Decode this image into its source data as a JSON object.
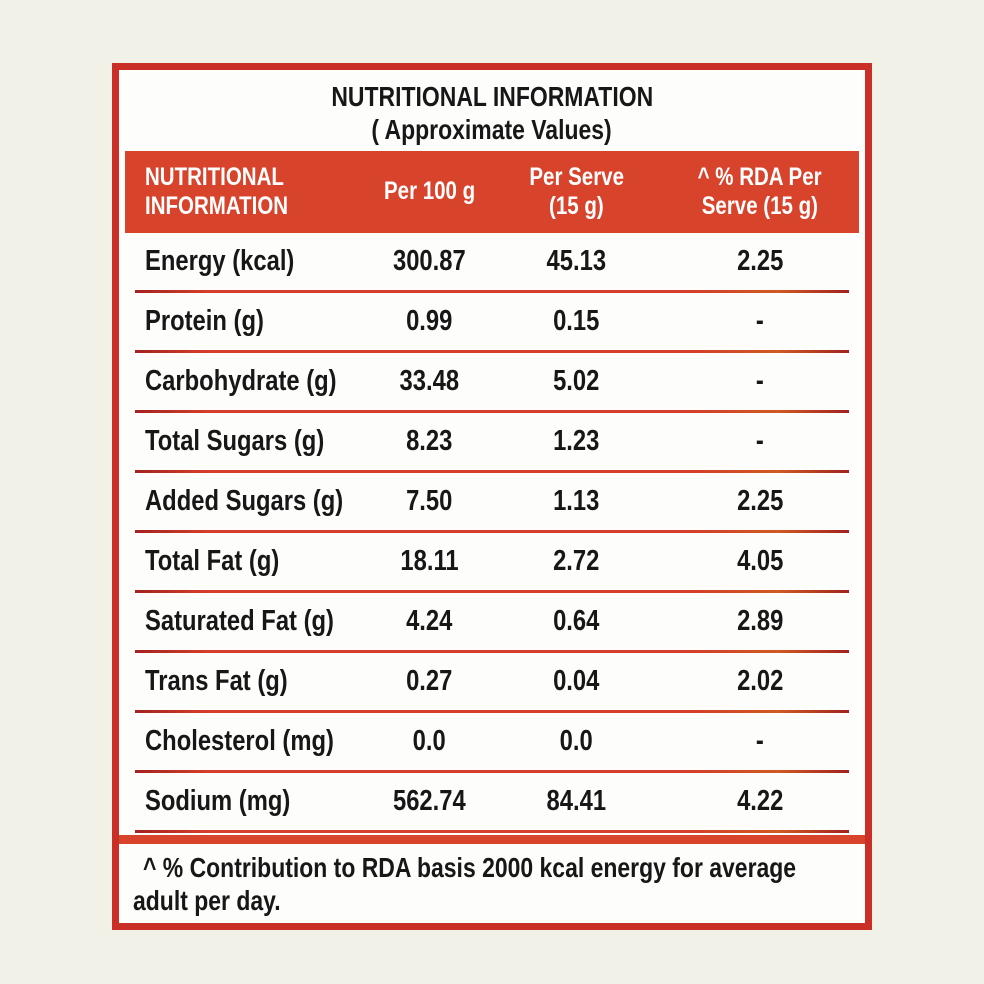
{
  "colors": {
    "background": "#f2f1e8",
    "paper": "#fdfdfb",
    "band_red": "#d8432c",
    "border_red": "#c92f26",
    "divider_dark": "#a32220",
    "divider_bright": "#d43e2a",
    "text": "#171717",
    "header_text": "#ffffff"
  },
  "title": {
    "line1": "NUTRITIONAL INFORMATION",
    "line2": "( Approximate Values)"
  },
  "header": {
    "col1_line1": "NUTRITIONAL",
    "col1_line2": "INFORMATION",
    "col2": "Per 100 g",
    "col3_line1": "Per Serve",
    "col3_line2": "(15 g)",
    "col4_line1": "^ % RDA Per",
    "col4_line2": "Serve (15 g)"
  },
  "rows": [
    {
      "label": "Energy (kcal)",
      "per_100g": "300.87",
      "per_serve": "45.13",
      "rda_per_serve": "2.25"
    },
    {
      "label": "Protein (g)",
      "per_100g": "0.99",
      "per_serve": "0.15",
      "rda_per_serve": "-"
    },
    {
      "label": "Carbohydrate (g)",
      "per_100g": "33.48",
      "per_serve": "5.02",
      "rda_per_serve": "-"
    },
    {
      "label": "Total Sugars (g)",
      "per_100g": "8.23",
      "per_serve": "1.23",
      "rda_per_serve": "-"
    },
    {
      "label": "Added Sugars (g)",
      "per_100g": "7.50",
      "per_serve": "1.13",
      "rda_per_serve": "2.25"
    },
    {
      "label": "Total Fat (g)",
      "per_100g": "18.11",
      "per_serve": "2.72",
      "rda_per_serve": "4.05"
    },
    {
      "label": "Saturated Fat (g)",
      "per_100g": "4.24",
      "per_serve": "0.64",
      "rda_per_serve": "2.89"
    },
    {
      "label": "Trans Fat (g)",
      "per_100g": "0.27",
      "per_serve": "0.04",
      "rda_per_serve": "2.02"
    },
    {
      "label": "Cholesterol (mg)",
      "per_100g": "0.0",
      "per_serve": "0.0",
      "rda_per_serve": "-"
    },
    {
      "label": "Sodium (mg)",
      "per_100g": "562.74",
      "per_serve": "84.41",
      "rda_per_serve": "4.22"
    }
  ],
  "footnote": {
    "line1": "^ % Contribution to RDA basis 2000 kcal energy for average",
    "line2": "adult per day."
  }
}
